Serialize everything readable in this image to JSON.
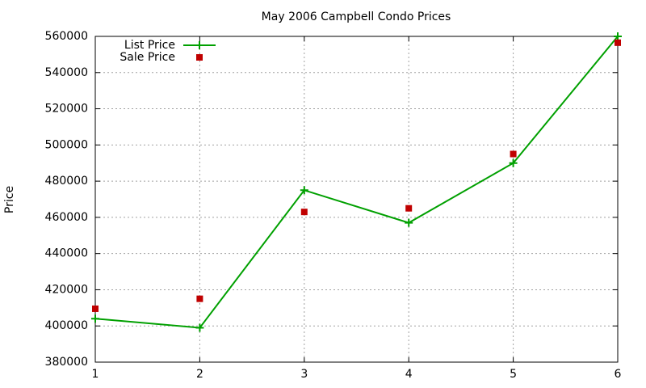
{
  "chart_data": {
    "type": "line",
    "title": "May 2006 Campbell Condo Prices",
    "y_label": "Price",
    "x": [
      1,
      2,
      3,
      4,
      5,
      6
    ],
    "series": [
      {
        "name": "List Price",
        "color": "#00a000",
        "mode": "lines+markers",
        "marker": "plus",
        "values": [
          404000,
          399000,
          475000,
          457000,
          490000,
          560000
        ]
      },
      {
        "name": "Sale Price",
        "color": "#c00000",
        "mode": "markers",
        "marker": "square",
        "values": [
          409500,
          415000,
          463000,
          465000,
          495000,
          556500
        ]
      }
    ],
    "xlim": [
      1,
      6
    ],
    "xticks": [
      1,
      2,
      3,
      4,
      5,
      6
    ],
    "ylim": [
      380000,
      560000
    ],
    "yticks": [
      380000,
      400000,
      420000,
      440000,
      460000,
      480000,
      500000,
      520000,
      540000,
      560000
    ],
    "grid": true,
    "legend": "top-left"
  }
}
